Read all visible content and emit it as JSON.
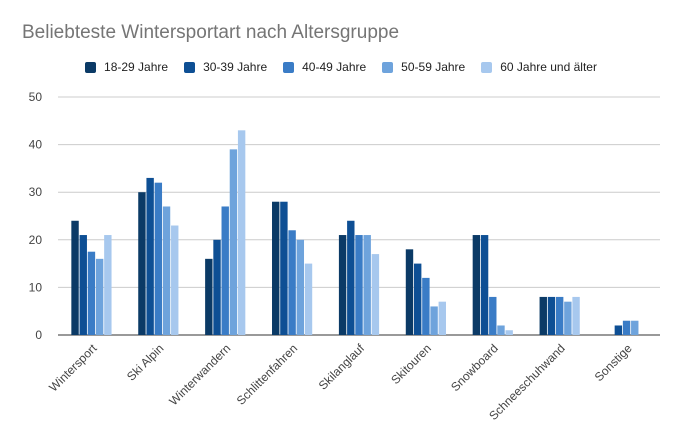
{
  "chart_data": {
    "type": "bar",
    "title": "Beliebteste Wintersportart nach Altersgruppe",
    "xlabel": "",
    "ylabel": "",
    "ylim": [
      0,
      50
    ],
    "yticks": [
      "0",
      "10",
      "20",
      "30",
      "40",
      "50"
    ],
    "grid": true,
    "legend_position": "top",
    "categories": [
      "Wintersport",
      "Ski Alpin",
      "Winterwandern",
      "Schlittenfahren",
      "Skilanglauf",
      "Skitouren",
      "Snowboard",
      "Schneeschuhwand",
      "Sonstige"
    ],
    "series": [
      {
        "name": "18-29 Jahre",
        "color": "#0b3a66",
        "values": [
          24,
          30,
          16,
          28,
          21,
          18,
          21,
          8,
          0
        ]
      },
      {
        "name": "30-39 Jahre",
        "color": "#0e4f94",
        "values": [
          21,
          33,
          20,
          28,
          24,
          15,
          21,
          8,
          2
        ]
      },
      {
        "name": "40-49 Jahre",
        "color": "#3a7cc6",
        "values": [
          17.5,
          32,
          27,
          22,
          21,
          12,
          8,
          8,
          3
        ]
      },
      {
        "name": "50-59 Jahre",
        "color": "#6ea3dc",
        "values": [
          16,
          27,
          39,
          20,
          21,
          6,
          2,
          7,
          3
        ]
      },
      {
        "name": "60 Jahre und älter",
        "color": "#a7c8ee",
        "values": [
          21,
          23,
          43,
          15,
          17,
          7,
          1,
          8,
          0
        ]
      }
    ]
  }
}
